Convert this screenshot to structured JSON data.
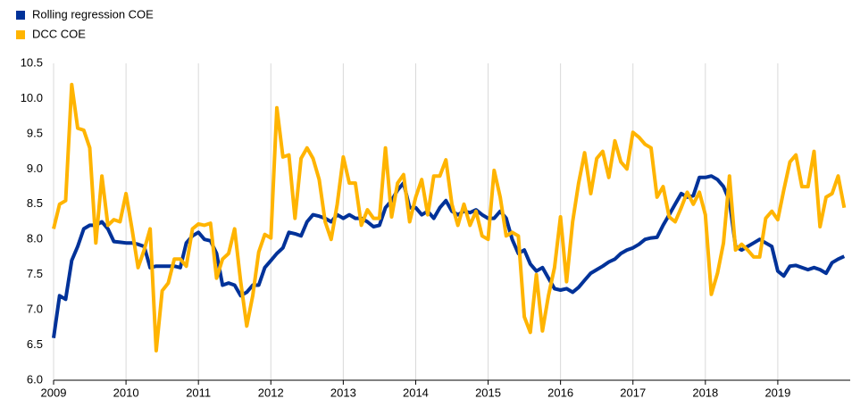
{
  "chart_data": {
    "type": "line",
    "x": [
      2009,
      2009.083,
      2009.167,
      2009.25,
      2009.333,
      2009.417,
      2009.5,
      2009.583,
      2009.667,
      2009.75,
      2009.833,
      2009.917,
      2010,
      2010.083,
      2010.167,
      2010.25,
      2010.333,
      2010.417,
      2010.5,
      2010.583,
      2010.667,
      2010.75,
      2010.833,
      2010.917,
      2011,
      2011.083,
      2011.167,
      2011.25,
      2011.333,
      2011.417,
      2011.5,
      2011.583,
      2011.667,
      2011.75,
      2011.833,
      2011.917,
      2012,
      2012.083,
      2012.167,
      2012.25,
      2012.333,
      2012.417,
      2012.5,
      2012.583,
      2012.667,
      2012.75,
      2012.833,
      2012.917,
      2013,
      2013.083,
      2013.167,
      2013.25,
      2013.333,
      2013.417,
      2013.5,
      2013.583,
      2013.667,
      2013.75,
      2013.833,
      2013.917,
      2014,
      2014.083,
      2014.167,
      2014.25,
      2014.333,
      2014.417,
      2014.5,
      2014.583,
      2014.667,
      2014.75,
      2014.833,
      2014.917,
      2015,
      2015.083,
      2015.167,
      2015.25,
      2015.333,
      2015.417,
      2015.5,
      2015.583,
      2015.667,
      2015.75,
      2015.833,
      2015.917,
      2016,
      2016.083,
      2016.167,
      2016.25,
      2016.333,
      2016.417,
      2016.5,
      2016.583,
      2016.667,
      2016.75,
      2016.833,
      2016.917,
      2017,
      2017.083,
      2017.167,
      2017.25,
      2017.333,
      2017.417,
      2017.5,
      2017.583,
      2017.667,
      2017.75,
      2017.833,
      2017.917,
      2018,
      2018.083,
      2018.167,
      2018.25,
      2018.333,
      2018.417,
      2018.5,
      2018.583,
      2018.667,
      2018.75,
      2018.833,
      2018.917,
      2019,
      2019.083,
      2019.167,
      2019.25,
      2019.333,
      2019.417,
      2019.5,
      2019.583,
      2019.667,
      2019.75,
      2019.833,
      2019.917
    ],
    "series": [
      {
        "name": "Rolling regression COE",
        "color": "#003299",
        "values": [
          6.6,
          7.2,
          7.15,
          7.7,
          7.9,
          8.15,
          8.2,
          8.2,
          8.25,
          8.15,
          7.97,
          7.96,
          7.95,
          7.95,
          7.93,
          7.9,
          7.6,
          7.62,
          7.62,
          7.62,
          7.62,
          7.6,
          7.95,
          8.05,
          8.1,
          8.0,
          7.98,
          7.8,
          7.35,
          7.38,
          7.35,
          7.2,
          7.25,
          7.35,
          7.35,
          7.6,
          7.7,
          7.8,
          7.88,
          8.1,
          8.08,
          8.05,
          8.25,
          8.35,
          8.33,
          8.3,
          8.25,
          8.35,
          8.3,
          8.35,
          8.3,
          8.3,
          8.25,
          8.18,
          8.2,
          8.45,
          8.55,
          8.7,
          8.8,
          8.45,
          8.45,
          8.35,
          8.4,
          8.3,
          8.45,
          8.55,
          8.4,
          8.35,
          8.4,
          8.38,
          8.42,
          8.35,
          8.3,
          8.3,
          8.4,
          8.3,
          8.0,
          7.8,
          7.85,
          7.65,
          7.55,
          7.6,
          7.45,
          7.3,
          7.28,
          7.3,
          7.25,
          7.32,
          7.42,
          7.52,
          7.57,
          7.62,
          7.68,
          7.72,
          7.8,
          7.85,
          7.88,
          7.93,
          8.0,
          8.02,
          8.03,
          8.2,
          8.35,
          8.5,
          8.65,
          8.6,
          8.62,
          8.88,
          8.88,
          8.9,
          8.85,
          8.75,
          8.55,
          7.9,
          7.85,
          7.9,
          7.95,
          8.0,
          7.95,
          7.9,
          7.55,
          7.48,
          7.62,
          7.63,
          7.6,
          7.57,
          7.6,
          7.57,
          7.52,
          7.67,
          7.72,
          7.76
        ]
      },
      {
        "name": "DCC COE",
        "color": "#ffb400",
        "values": [
          8.15,
          8.5,
          8.55,
          10.2,
          9.58,
          9.55,
          9.3,
          7.95,
          8.9,
          8.2,
          8.28,
          8.25,
          8.65,
          8.15,
          7.6,
          7.85,
          8.15,
          6.42,
          7.27,
          7.38,
          7.72,
          7.72,
          7.62,
          8.15,
          8.22,
          8.2,
          8.23,
          7.45,
          7.72,
          7.8,
          8.15,
          7.4,
          6.77,
          7.2,
          7.82,
          8.07,
          8.02,
          9.87,
          9.17,
          9.2,
          8.3,
          9.15,
          9.3,
          9.15,
          8.85,
          8.25,
          8.0,
          8.5,
          9.17,
          8.8,
          8.8,
          8.2,
          8.42,
          8.3,
          8.3,
          9.3,
          8.32,
          8.8,
          8.92,
          8.25,
          8.6,
          8.85,
          8.35,
          8.9,
          8.9,
          9.13,
          8.5,
          8.2,
          8.5,
          8.2,
          8.4,
          8.05,
          8.0,
          8.98,
          8.6,
          8.05,
          8.1,
          8.05,
          6.9,
          6.68,
          7.5,
          6.7,
          7.2,
          7.6,
          8.32,
          7.4,
          8.25,
          8.8,
          9.23,
          8.65,
          9.15,
          9.25,
          8.88,
          9.4,
          9.1,
          9.0,
          9.52,
          9.45,
          9.35,
          9.3,
          8.6,
          8.75,
          8.32,
          8.25,
          8.45,
          8.67,
          8.5,
          8.67,
          8.35,
          7.22,
          7.52,
          7.95,
          8.9,
          7.85,
          7.93,
          7.85,
          7.75,
          7.75,
          8.3,
          8.4,
          8.28,
          8.7,
          9.1,
          9.2,
          8.75,
          8.75,
          9.25,
          8.18,
          8.6,
          8.65,
          8.9,
          8.45
        ]
      }
    ],
    "xlim": [
      2009,
      2020
    ],
    "xticks": [
      2009,
      2010,
      2011,
      2012,
      2013,
      2014,
      2015,
      2016,
      2017,
      2018,
      2019
    ],
    "ylim": [
      6.0,
      10.5
    ],
    "yticks": [
      {
        "value": 6.0,
        "label": "6.0"
      },
      {
        "value": 6.5,
        "label": "6.5"
      },
      {
        "value": 7.0,
        "label": "7.0"
      },
      {
        "value": 7.5,
        "label": "7.5"
      },
      {
        "value": 8.0,
        "label": "8.0"
      },
      {
        "value": 8.5,
        "label": "8.5"
      },
      {
        "value": 9.0,
        "label": "9.0"
      },
      {
        "value": 9.5,
        "label": "9.5"
      },
      {
        "value": 10.0,
        "label": "10.0"
      },
      {
        "value": 10.5,
        "label": "10.5"
      }
    ],
    "grid": "x",
    "legend": "top-left"
  }
}
